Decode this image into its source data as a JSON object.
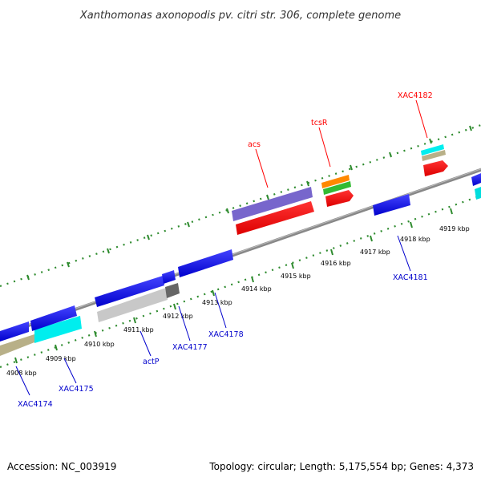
{
  "title": "Xanthomonas axonopodis pv. citri str. 306, complete genome",
  "footer": {
    "accession": "Accession: NC_003919",
    "summary": "Topology: circular; Length: 5,175,554 bp; Genes: 4,373"
  },
  "ruler": {
    "unit": "kbp",
    "ticks": [
      "4908 kbp",
      "4909 kbp",
      "4910 kbp",
      "4911 kbp",
      "4912 kbp",
      "4913 kbp",
      "4914 kbp",
      "4915 kbp",
      "4916 kbp",
      "4917 kbp",
      "4918 kbp",
      "4919 kbp"
    ]
  },
  "gene_labels": {
    "reverse": [
      "XAC4174",
      "XAC4175",
      "actP",
      "XAC4177",
      "XAC4178",
      "XAC4181"
    ],
    "forward": [
      "acs",
      "tcsR",
      "XAC4182"
    ]
  },
  "colors": {
    "backbone": "#808080",
    "forward_label": "#ff0000",
    "reverse_label": "#0000cc",
    "tick": "#2e8b2e",
    "blue": "#1111ee",
    "red": "#ee0000",
    "cyan": "#00f0f0",
    "khaki": "#b8b088",
    "violet": "#7766cc",
    "orange": "#ff8800",
    "green": "#33bb33",
    "silver": "#c8c8c8",
    "dark": "#666666"
  }
}
